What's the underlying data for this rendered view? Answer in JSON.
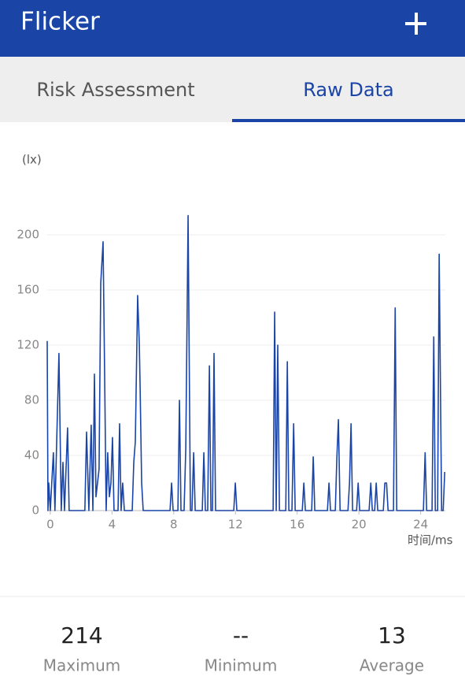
{
  "header": {
    "title": "Flicker"
  },
  "tabs": [
    "Risk Assessment",
    "Raw Data"
  ],
  "chart_data": {
    "type": "line",
    "ylabel": "(lx)",
    "xlabel": "时间/ms",
    "x": [
      -0.2,
      -0.15,
      -0.1,
      0,
      0.2,
      0.3,
      0.56,
      0.71,
      0.82,
      0.92,
      1.12,
      1.22,
      2.24,
      2.35,
      2.5,
      2.65,
      2.76,
      2.86,
      2.96,
      3.06,
      3.16,
      3.27,
      3.42,
      3.52,
      3.62,
      3.72,
      3.83,
      3.93,
      4.03,
      4.13,
      4.39,
      4.49,
      4.59,
      4.69,
      4.8,
      5.31,
      5.41,
      5.51,
      5.66,
      5.77,
      5.82,
      5.92,
      6.02,
      7.76,
      7.86,
      7.96,
      8.27,
      8.37,
      8.47,
      8.67,
      8.78,
      8.93,
      9.08,
      9.18,
      9.29,
      9.39,
      9.85,
      9.95,
      10.05,
      10.2,
      10.31,
      10.41,
      10.51,
      10.61,
      10.71,
      11.89,
      11.99,
      12.09,
      14.44,
      14.54,
      14.64,
      14.74,
      14.85,
      15.26,
      15.36,
      15.46,
      15.66,
      15.77,
      15.87,
      16.33,
      16.43,
      16.53,
      16.94,
      17.04,
      17.14,
      17.96,
      18.06,
      18.16,
      18.47,
      18.57,
      18.67,
      18.78,
      19.29,
      19.39,
      19.49,
      19.59,
      19.85,
      19.95,
      20.05,
      20.66,
      20.77,
      20.87,
      21.02,
      21.12,
      21.22,
      21.58,
      21.68,
      21.79,
      21.89,
      22.24,
      22.35,
      22.45,
      24.18,
      24.29,
      24.39,
      24.74,
      24.85,
      24.95,
      25.1,
      25.2,
      25.36,
      25.46,
      25.56
    ],
    "series": [
      {
        "color": "#1a44a6",
        "values": [
          123,
          0,
          20,
          0,
          42,
          0,
          114,
          0,
          35,
          0,
          60,
          0,
          0,
          57,
          0,
          62,
          0,
          99,
          10,
          20,
          30,
          165,
          195,
          100,
          0,
          42,
          10,
          20,
          53,
          0,
          0,
          63,
          0,
          20,
          0,
          0,
          35,
          50,
          156,
          120,
          90,
          20,
          0,
          0,
          20,
          0,
          0,
          80,
          0,
          0,
          45,
          214,
          0,
          0,
          42,
          0,
          0,
          42,
          0,
          0,
          105,
          0,
          0,
          114,
          0,
          0,
          20,
          0,
          0,
          144,
          0,
          120,
          0,
          0,
          108,
          0,
          0,
          63,
          0,
          0,
          20,
          0,
          0,
          39,
          0,
          0,
          20,
          0,
          0,
          38,
          66,
          0,
          0,
          20,
          63,
          0,
          0,
          20,
          0,
          0,
          20,
          0,
          0,
          20,
          0,
          0,
          20,
          20,
          0,
          0,
          147,
          0,
          0,
          42,
          0,
          0,
          126,
          0,
          0,
          186,
          0,
          0,
          28
        ]
      }
    ],
    "xlim": [
      -0.2,
      25.6
    ],
    "ylim": [
      0,
      220
    ],
    "xticks": [
      0,
      4,
      8,
      12,
      16,
      20,
      24
    ],
    "yticks": [
      0,
      40,
      80,
      120,
      160,
      200
    ],
    "grid": true
  },
  "stats": [
    {
      "value": 214,
      "label": "Maximum"
    },
    {
      "value": "--",
      "label": "Minimum"
    },
    {
      "value": 13,
      "label": "Average"
    }
  ]
}
